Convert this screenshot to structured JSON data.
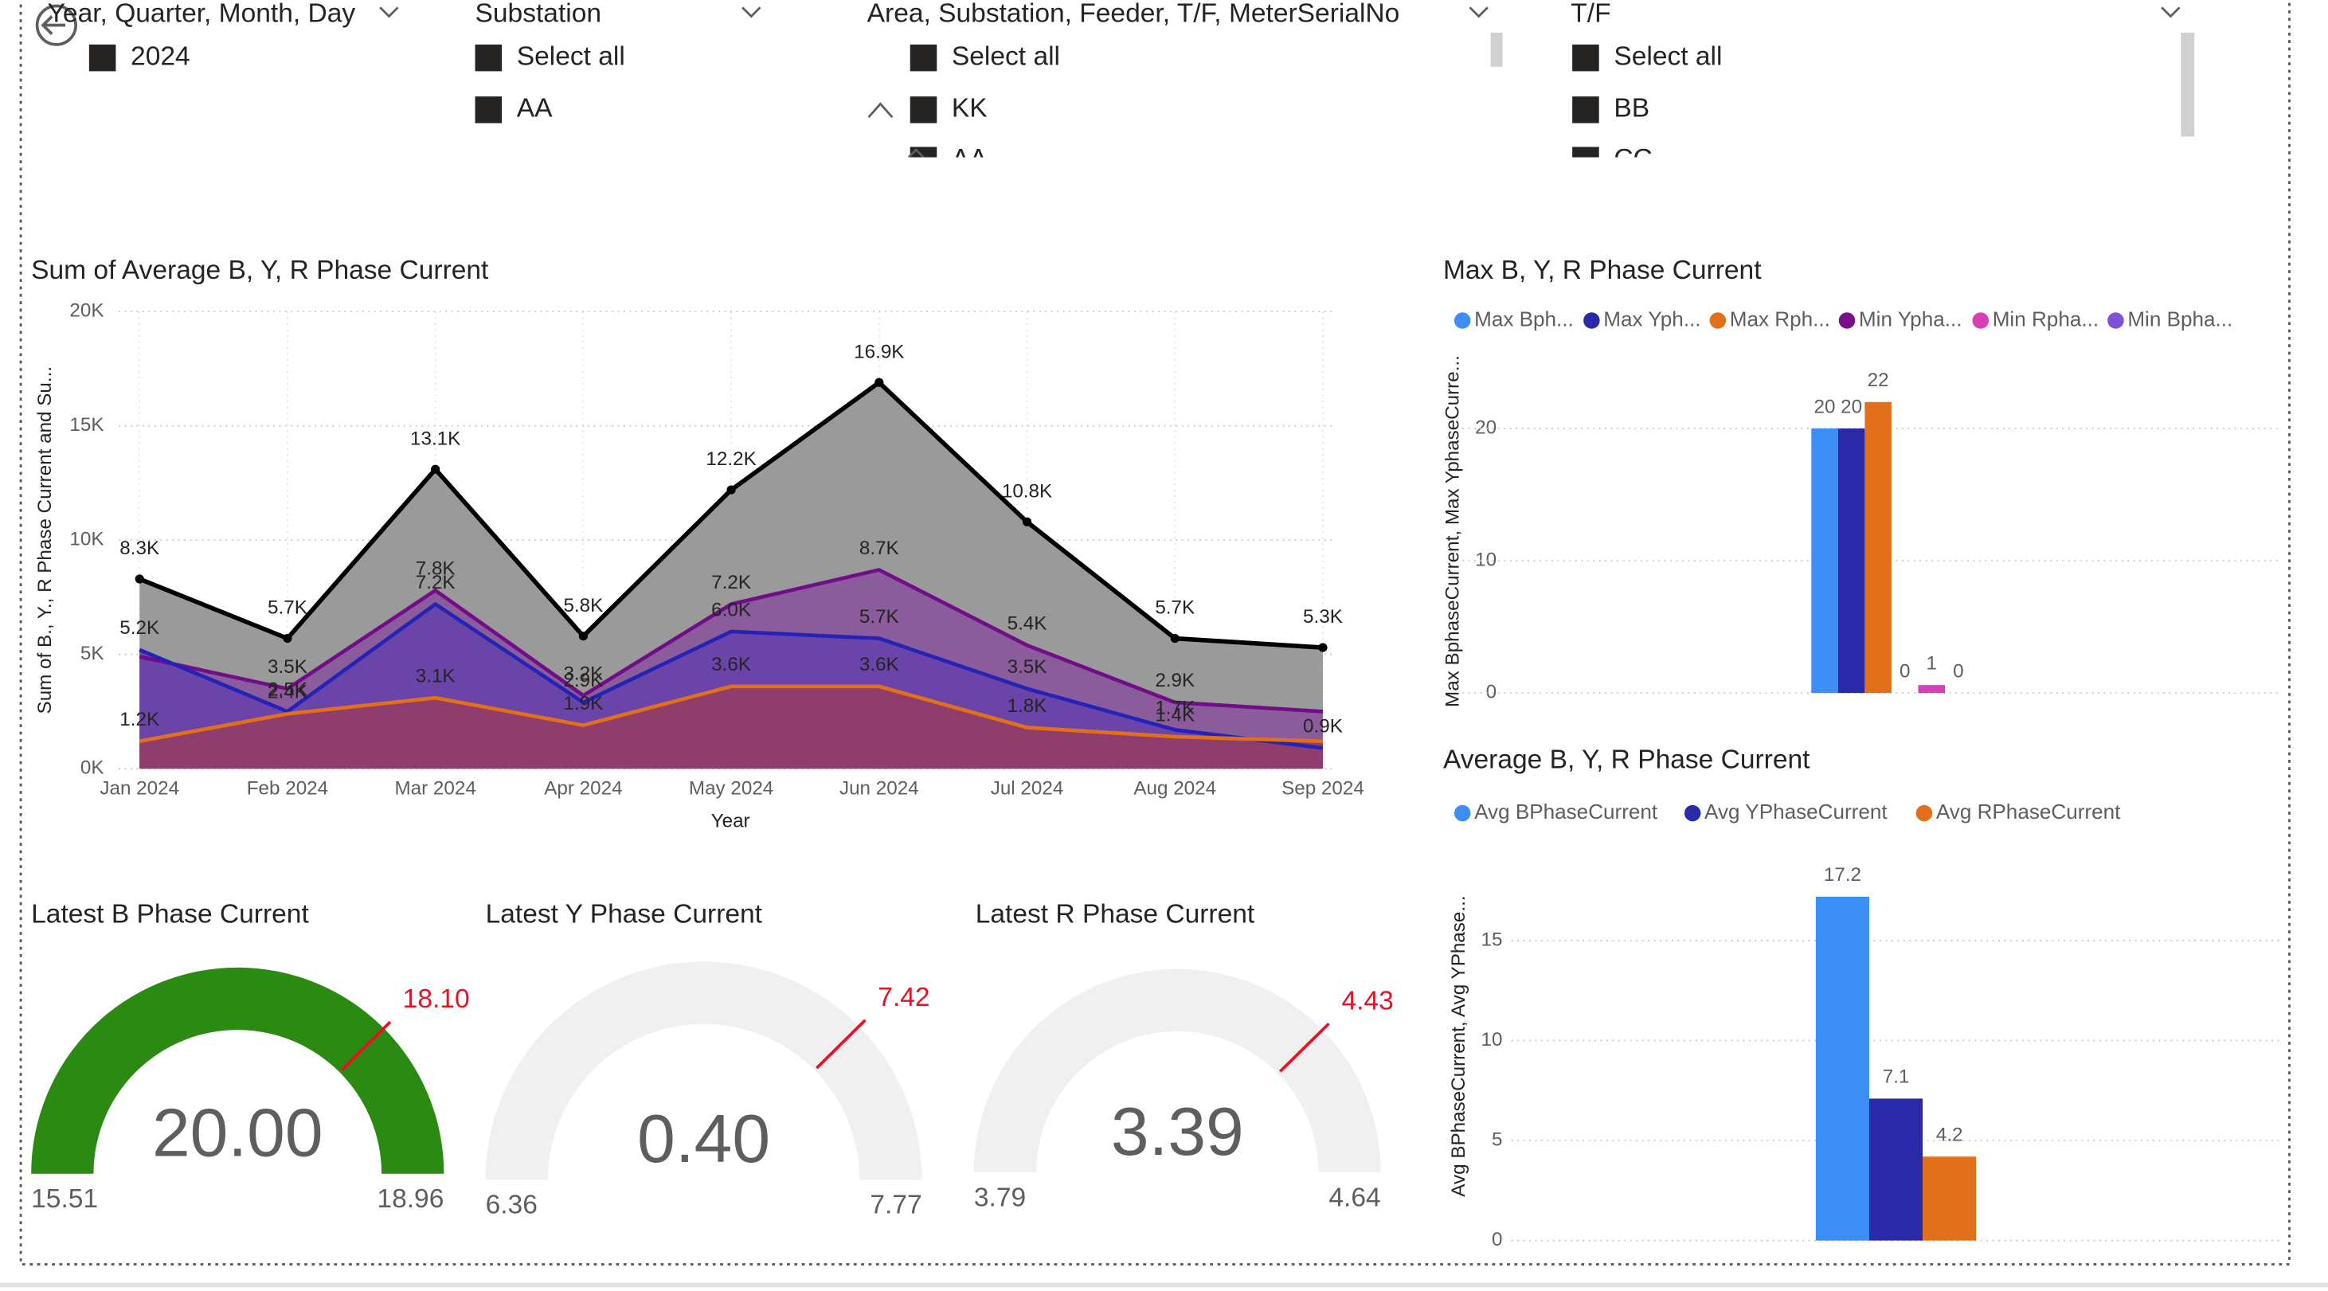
{
  "slicers": [
    {
      "title": "Year, Quarter, Month, Day",
      "items": [
        "2024"
      ]
    },
    {
      "title": "Substation",
      "items": [
        "Select all",
        "AA"
      ]
    },
    {
      "title": "Area, Substation, Feeder, T/F, MeterSerialNo",
      "items": [
        "Select all",
        "KK",
        "AA"
      ]
    },
    {
      "title": "T/F",
      "items": [
        "Select all",
        "BB",
        "CC"
      ]
    }
  ],
  "chart_data": [
    {
      "type": "area",
      "title": "Sum of Average B, Y, R Phase Current",
      "y_label": "Sum of B., Y., R Phase Current and Su...",
      "x_label": "Year",
      "categories": [
        "Jan 2024",
        "Feb 2024",
        "Mar 2024",
        "Apr 2024",
        "May 2024",
        "Jun 2024",
        "Jul 2024",
        "Aug 2024",
        "Sep 2024"
      ],
      "ylim": [
        0,
        20000
      ],
      "yticks": [
        {
          "value": 0,
          "label": "0K"
        },
        {
          "value": 5000,
          "label": "5K"
        },
        {
          "value": 10000,
          "label": "10K"
        },
        {
          "value": 15000,
          "label": "15K"
        },
        {
          "value": 20000,
          "label": "20K"
        }
      ],
      "grid": true,
      "series": [
        {
          "color": "#000000",
          "fill": "#9a9a9a",
          "markers": true,
          "values": [
            8300,
            5700,
            13100,
            5800,
            12200,
            16900,
            10800,
            5700,
            5300
          ],
          "value_labels": [
            "8.3K",
            "5.7K",
            "13.1K",
            "5.8K",
            "12.2K",
            "16.9K",
            "10.8K",
            "5.7K",
            "5.3K"
          ]
        },
        {
          "color": "#720d8a",
          "fill": "#8a5c9c",
          "values": [
            4900,
            3500,
            7800,
            3200,
            7200,
            8700,
            5400,
            2900,
            2500
          ],
          "value_labels": [
            null,
            "3.5K",
            "7.8K",
            "3.2K",
            "7.2K",
            "8.7K",
            "5.4K",
            "2.9K",
            null
          ]
        },
        {
          "color": "#2323b8",
          "fill": "#6a44a8",
          "values": [
            5200,
            2500,
            7200,
            2900,
            6000,
            5700,
            3500,
            1700,
            900
          ],
          "value_labels": [
            "5.2K",
            "2.5K",
            "7.2K",
            "2.9K",
            "6.0K",
            "5.7K",
            "3.5K",
            "1.7K",
            "0.9K"
          ]
        },
        {
          "color": "#e2701a",
          "fill": "#8e3d6c",
          "values": [
            1200,
            2400,
            3100,
            1900,
            3600,
            3600,
            1800,
            1400,
            1200
          ],
          "value_labels": [
            "1.2K",
            "2.4K",
            "3.1K",
            "1.9K",
            "3.6K",
            "3.6K",
            "1.8K",
            "1.4K",
            null
          ]
        }
      ]
    },
    {
      "type": "bar",
      "title": "Max B, Y, R Phase Current",
      "y_label": "Max BphaseCurrent, Max YphaseCurre...",
      "ylim": [
        0,
        23
      ],
      "yticks": [
        0,
        10,
        20
      ],
      "grid": true,
      "series": [
        {
          "name": "Max Bph...",
          "color": "#3a8ef6",
          "values": [
            20
          ]
        },
        {
          "name": "Max Yph...",
          "color": "#2a2aa8",
          "values": [
            20
          ]
        },
        {
          "name": "Max Rph...",
          "color": "#e2701a",
          "values": [
            22
          ]
        },
        {
          "name": "Min Ypha...",
          "color": "#7a0f8a",
          "values": [
            0
          ]
        },
        {
          "name": "Min Rpha...",
          "color": "#d63fb5",
          "values": [
            0.6
          ],
          "value_labels": [
            "1"
          ]
        },
        {
          "name": "Min Bpha...",
          "color": "#7b52d8",
          "values": [
            0
          ]
        }
      ]
    },
    {
      "type": "bar",
      "title": "Average B, Y, R Phase Current",
      "y_label": "Avg BPhaseCurrent, Avg YPhase...",
      "ylim": [
        0,
        19
      ],
      "yticks": [
        0,
        5,
        10,
        15
      ],
      "grid": true,
      "series": [
        {
          "name": "Avg BPhaseCurrent",
          "color": "#3a8ef6",
          "values": [
            17.2
          ]
        },
        {
          "name": "Avg YPhaseCurrent",
          "color": "#2a2aa8",
          "values": [
            7.1
          ]
        },
        {
          "name": "Avg RPhaseCurrent",
          "color": "#e2701a",
          "values": [
            4.2
          ]
        }
      ]
    },
    {
      "type": "gauge",
      "title": "Latest B Phase Current",
      "value": 20,
      "value_label": "20.00",
      "min": 15.51,
      "max": 18.96,
      "target": 18.1,
      "target_label": "18.10",
      "color": "#2b8a12"
    },
    {
      "type": "gauge",
      "title": "Latest Y Phase Current",
      "value": 0.4,
      "value_label": "0.40",
      "min": 6.36,
      "max": 7.77,
      "target": 7.42,
      "color": "#2b8a12"
    },
    {
      "type": "gauge",
      "title": "Latest R Phase Current",
      "value": 3.39,
      "min": 3.79,
      "max": 4.64,
      "target": 4.43,
      "color": "#2b8a12"
    }
  ]
}
